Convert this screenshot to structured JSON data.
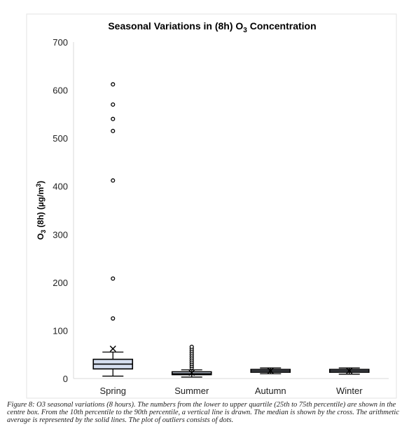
{
  "chart_data": {
    "type": "boxplot",
    "title": "Seasonal Variations in (8h) O",
    "title_subscript": "3",
    "title_suffix": " Concentration",
    "ylabel": "O3 (8h) (µg/m3)",
    "ylabel_parts": {
      "base": "O",
      "sub": "3",
      "mid": " (8h) (µg/m",
      "sup": "3",
      "end": ")"
    },
    "ylim": [
      0,
      700
    ],
    "yticks": [
      0,
      100,
      200,
      300,
      400,
      500,
      600,
      700
    ],
    "grid": false,
    "categories": [
      "Spring",
      "Summer",
      "Autumn",
      "Winter"
    ],
    "boxes": [
      {
        "category": "Spring",
        "whisker_low": 5,
        "q1": 20,
        "median": 30,
        "q3": 40,
        "whisker_high": 55,
        "mean": 62,
        "outliers": [
          125,
          208,
          412,
          515,
          540,
          570,
          612
        ]
      },
      {
        "category": "Summer",
        "whisker_low": 3,
        "q1": 8,
        "median": 10,
        "q3": 14,
        "whisker_high": 18,
        "mean": 12,
        "outliers": [
          22,
          26,
          30,
          34,
          38,
          42,
          46,
          50,
          54,
          58,
          62,
          66
        ]
      },
      {
        "category": "Autumn",
        "whisker_low": 10,
        "q1": 13,
        "median": 16,
        "q3": 19,
        "whisker_high": 22,
        "mean": 16,
        "outliers": []
      },
      {
        "category": "Winter",
        "whisker_low": 9,
        "q1": 13,
        "median": 16,
        "q3": 19,
        "whisker_high": 22,
        "mean": 16,
        "outliers": []
      }
    ],
    "colors": {
      "box_fill": "#d6dff0",
      "stroke": "#000000",
      "axis": "#d9d9d9"
    }
  },
  "caption": "Figure 8: O3 seasonal variations (8 hours). The numbers from the lower to upper quartile (25th to 75th percentile) are shown in the centre box. From the 10th percentile to the 90th percentile, a vertical line is drawn. The median is shown by the cross. The arithmetic average is represented by the solid lines. The plot of outliers consists of dots."
}
